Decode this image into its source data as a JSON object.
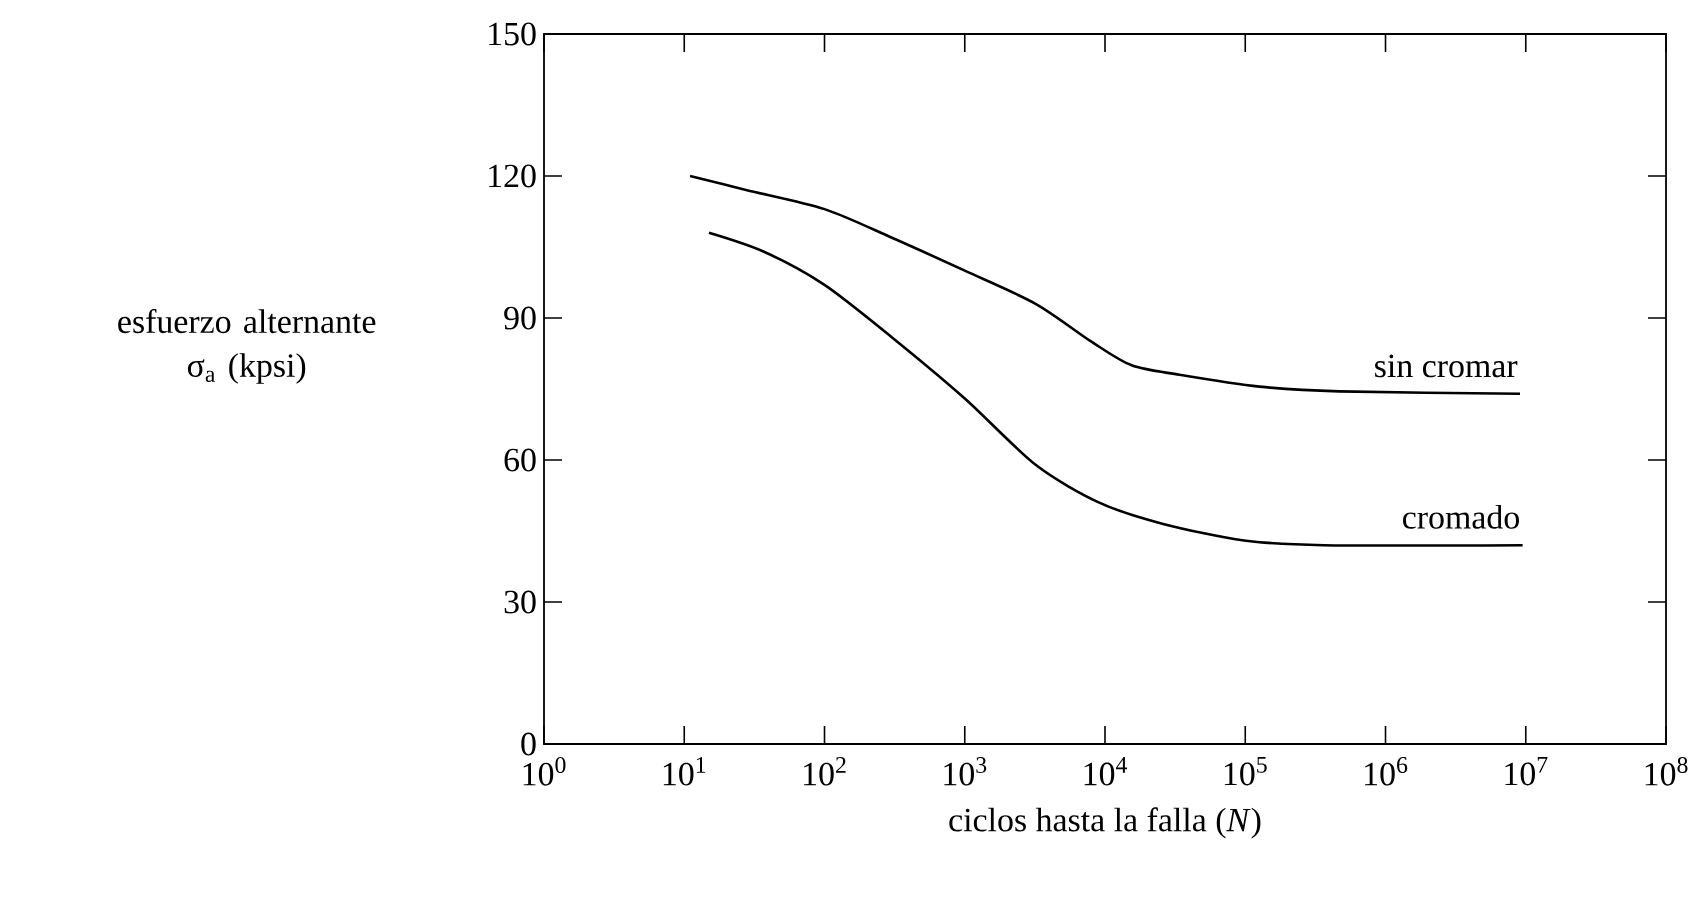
{
  "chart_data": {
    "type": "line",
    "log": "x",
    "xlabel": "ciclos hasta la falla (*N*)",
    "ylabel": "esfuerzo alternante σ$_{a}$ (kpsi)",
    "xlim": [
      1,
      100000000
    ],
    "ylim": [
      0,
      150
    ],
    "xticks": [
      {
        "value": 1,
        "label": "10$^{0}$"
      },
      {
        "value": 10,
        "label": "10$^{1}$"
      },
      {
        "value": 100,
        "label": "10$^{2}$"
      },
      {
        "value": 1000,
        "label": "10$^{3}$"
      },
      {
        "value": 10000,
        "label": "10$^{4}$"
      },
      {
        "value": 100000,
        "label": "10$^{5}$"
      },
      {
        "value": 1000000,
        "label": "10$^{6}$"
      },
      {
        "value": 10000000,
        "label": "10$^{7}$"
      },
      {
        "value": 100000000,
        "label": "10$^{8}$"
      }
    ],
    "yticks": [
      0,
      30,
      60,
      90,
      120,
      150
    ],
    "series": [
      {
        "name": "sin cromar",
        "color": "#000000",
        "x": [
          11,
          28,
          100,
          300,
          1000,
          3200,
          8000,
          15500,
          34000,
          126000,
          468000,
          9100000
        ],
        "values": [
          120,
          117,
          113,
          107,
          100,
          93,
          85,
          80,
          78,
          75.5,
          74.5,
          74
        ]
      },
      {
        "name": "cromado",
        "color": "#000000",
        "x": [
          15,
          37,
          100,
          300,
          1000,
          3200,
          9100,
          26000,
          98000,
          363000,
          9500000
        ],
        "values": [
          108,
          104,
          97,
          86,
          73,
          59,
          51,
          46.5,
          43,
          42,
          42
        ]
      }
    ]
  }
}
